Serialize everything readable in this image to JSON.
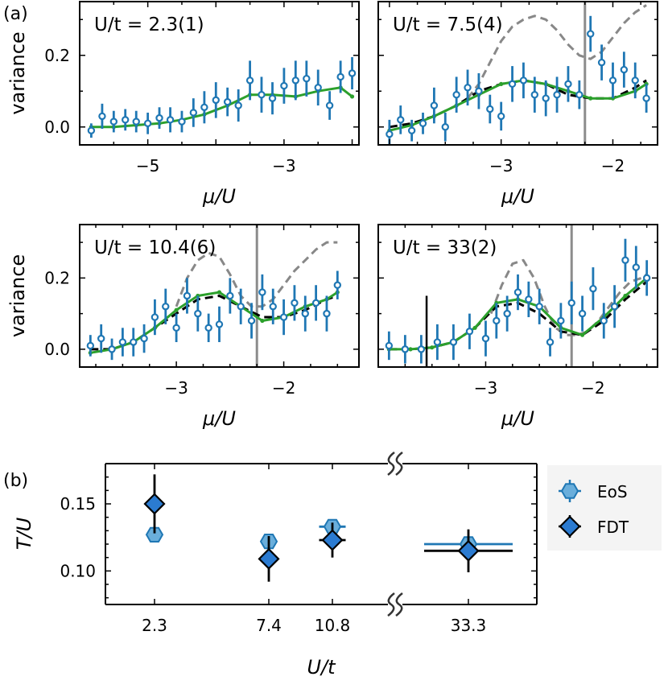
{
  "panel_labels": [
    "(a)",
    "(b)"
  ],
  "chart_data": [
    {
      "type": "line",
      "annotation": "U/t = 2.3(1)",
      "xlabel": "μ/U",
      "ylabel": "variance",
      "xlim": [
        -6.0,
        -1.9
      ],
      "ylim": [
        -0.05,
        0.35
      ],
      "xticks": [
        -5,
        -3
      ],
      "xtick_labels": [
        "−5",
        "−3"
      ],
      "yticks": [
        0.0,
        0.2
      ],
      "ytick_labels": [
        "0.0",
        "0.2"
      ],
      "vline": null,
      "series": [
        {
          "kind": "errorbar",
          "color": "#1f77b4",
          "x": [
            -5.83,
            -5.67,
            -5.5,
            -5.33,
            -5.17,
            -5.0,
            -4.83,
            -4.67,
            -4.5,
            -4.33,
            -4.17,
            -4.0,
            -3.83,
            -3.67,
            -3.5,
            -3.33,
            -3.17,
            -3.0,
            -2.83,
            -2.67,
            -2.5,
            -2.33,
            -2.17,
            -2.0
          ],
          "y": [
            -0.01,
            0.03,
            0.015,
            0.02,
            0.015,
            0.01,
            0.025,
            0.02,
            0.015,
            0.04,
            0.055,
            0.075,
            0.07,
            0.06,
            0.13,
            0.09,
            0.08,
            0.115,
            0.13,
            0.135,
            0.11,
            0.06,
            0.14,
            0.15
          ],
          "err": [
            0.02,
            0.035,
            0.03,
            0.03,
            0.03,
            0.03,
            0.03,
            0.035,
            0.03,
            0.04,
            0.045,
            0.05,
            0.04,
            0.045,
            0.055,
            0.05,
            0.045,
            0.05,
            0.055,
            0.05,
            0.05,
            0.04,
            0.045,
            0.045
          ]
        },
        {
          "kind": "line",
          "color": "#2ca02c",
          "x": [
            -5.83,
            -5.5,
            -5.17,
            -4.83,
            -4.5,
            -4.17,
            -3.83,
            -3.5,
            -3.17,
            -2.83,
            -2.5,
            -2.17,
            -2.0
          ],
          "y": [
            0.0,
            0.0,
            0.005,
            0.01,
            0.02,
            0.035,
            0.06,
            0.09,
            0.09,
            0.085,
            0.1,
            0.11,
            0.085
          ]
        }
      ]
    },
    {
      "type": "line",
      "annotation": "U/t = 7.5(4)",
      "xlabel": "μ/U",
      "ylabel": "",
      "xlim": [
        -4.1,
        -1.6
      ],
      "ylim": [
        -0.05,
        0.35
      ],
      "xticks": [
        -3,
        -2
      ],
      "xtick_labels": [
        "−3",
        "−2"
      ],
      "yticks": [
        0.0,
        0.2
      ],
      "ytick_labels": [
        "",
        ""
      ],
      "vline": -2.25,
      "series": [
        {
          "kind": "errorbar",
          "color": "#1f77b4",
          "x": [
            -4.0,
            -3.9,
            -3.8,
            -3.7,
            -3.6,
            -3.5,
            -3.4,
            -3.3,
            -3.2,
            -3.1,
            -3.0,
            -2.9,
            -2.8,
            -2.7,
            -2.6,
            -2.5,
            -2.4,
            -2.3,
            -2.2,
            -2.1,
            -2.0,
            -1.9,
            -1.8,
            -1.7
          ],
          "y": [
            -0.02,
            0.02,
            -0.01,
            0.01,
            0.06,
            0.0,
            0.09,
            0.11,
            0.1,
            0.05,
            0.03,
            0.12,
            0.13,
            0.09,
            0.08,
            0.09,
            0.12,
            0.09,
            0.26,
            0.18,
            0.13,
            0.16,
            0.13,
            0.08
          ],
          "err": [
            0.04,
            0.04,
            0.03,
            0.03,
            0.05,
            0.04,
            0.05,
            0.05,
            0.05,
            0.04,
            0.04,
            0.05,
            0.05,
            0.05,
            0.05,
            0.05,
            0.05,
            0.04,
            0.05,
            0.05,
            0.05,
            0.05,
            0.05,
            0.04
          ]
        },
        {
          "kind": "line",
          "color": "#2ca02c",
          "x": [
            -4.0,
            -3.8,
            -3.6,
            -3.4,
            -3.2,
            -3.0,
            -2.8,
            -2.6,
            -2.4,
            -2.2,
            -2.0,
            -1.8,
            -1.7
          ],
          "y": [
            -0.01,
            0.005,
            0.03,
            0.06,
            0.09,
            0.12,
            0.13,
            0.12,
            0.1,
            0.08,
            0.08,
            0.1,
            0.12
          ]
        },
        {
          "kind": "dashed",
          "color": "#000000",
          "x": [
            -4.0,
            -3.8,
            -3.6,
            -3.4,
            -3.2,
            -3.0,
            -2.8,
            -2.6,
            -2.4,
            -2.2,
            -2.0,
            -1.8,
            -1.7
          ],
          "y": [
            0.0,
            0.01,
            0.03,
            0.06,
            0.1,
            0.12,
            0.13,
            0.12,
            0.09,
            0.08,
            0.08,
            0.11,
            0.13
          ]
        },
        {
          "kind": "dashed",
          "color": "#888888",
          "x": [
            -3.3,
            -3.2,
            -3.1,
            -3.0,
            -2.9,
            -2.8,
            -2.7,
            -2.6,
            -2.5,
            -2.4,
            -2.3,
            -2.2,
            -2.1,
            -2.0,
            -1.9,
            -1.8,
            -1.7
          ],
          "y": [
            0.08,
            0.12,
            0.18,
            0.24,
            0.28,
            0.3,
            0.31,
            0.3,
            0.27,
            0.23,
            0.2,
            0.19,
            0.21,
            0.25,
            0.29,
            0.32,
            0.34
          ]
        }
      ]
    },
    {
      "type": "line",
      "annotation": "U/t = 10.4(6)",
      "xlabel": "μ/U",
      "ylabel": "variance",
      "xlim": [
        -3.9,
        -1.3
      ],
      "ylim": [
        -0.05,
        0.35
      ],
      "xticks": [
        -3,
        -2
      ],
      "xtick_labels": [
        "−3",
        "−2"
      ],
      "yticks": [
        0.0,
        0.2
      ],
      "ytick_labels": [
        "0.0",
        "0.2"
      ],
      "vline": -2.25,
      "series": [
        {
          "kind": "errorbar",
          "color": "#1f77b4",
          "x": [
            -3.8,
            -3.7,
            -3.6,
            -3.5,
            -3.4,
            -3.3,
            -3.2,
            -3.1,
            -3.0,
            -2.9,
            -2.8,
            -2.7,
            -2.6,
            -2.5,
            -2.4,
            -2.3,
            -2.2,
            -2.1,
            -2.0,
            -1.9,
            -1.8,
            -1.7,
            -1.6,
            -1.5
          ],
          "y": [
            0.01,
            0.03,
            0.0,
            0.02,
            0.02,
            0.03,
            0.09,
            0.12,
            0.06,
            0.15,
            0.1,
            0.06,
            0.07,
            0.15,
            0.12,
            0.08,
            0.16,
            0.12,
            0.09,
            0.13,
            0.1,
            0.13,
            0.1,
            0.18
          ],
          "err": [
            0.03,
            0.04,
            0.03,
            0.04,
            0.04,
            0.04,
            0.05,
            0.05,
            0.04,
            0.05,
            0.05,
            0.04,
            0.05,
            0.05,
            0.05,
            0.05,
            0.05,
            0.05,
            0.05,
            0.05,
            0.05,
            0.05,
            0.05,
            0.04
          ]
        },
        {
          "kind": "line",
          "color": "#2ca02c",
          "x": [
            -3.8,
            -3.6,
            -3.4,
            -3.2,
            -3.0,
            -2.8,
            -2.6,
            -2.4,
            -2.2,
            -2.0,
            -1.8,
            -1.6,
            -1.5
          ],
          "y": [
            -0.01,
            0.0,
            0.02,
            0.06,
            0.11,
            0.15,
            0.16,
            0.12,
            0.08,
            0.09,
            0.12,
            0.14,
            0.16
          ]
        },
        {
          "kind": "dashed",
          "color": "#000000",
          "x": [
            -3.8,
            -3.6,
            -3.4,
            -3.2,
            -3.0,
            -2.8,
            -2.6,
            -2.4,
            -2.2,
            -2.0,
            -1.8,
            -1.6,
            -1.5
          ],
          "y": [
            0.0,
            0.0,
            0.02,
            0.06,
            0.1,
            0.14,
            0.15,
            0.12,
            0.09,
            0.09,
            0.11,
            0.14,
            0.15
          ]
        },
        {
          "kind": "dashed",
          "color": "#888888",
          "x": [
            -3.0,
            -2.9,
            -2.8,
            -2.7,
            -2.6,
            -2.5,
            -2.4,
            -2.3,
            -2.2,
            -2.1,
            -2.0,
            -1.9,
            -1.8,
            -1.7,
            -1.6,
            -1.5
          ],
          "y": [
            0.12,
            0.2,
            0.25,
            0.27,
            0.26,
            0.21,
            0.15,
            0.12,
            0.12,
            0.14,
            0.18,
            0.22,
            0.25,
            0.28,
            0.3,
            0.3
          ]
        }
      ]
    },
    {
      "type": "line",
      "annotation": "U/t = 33(2)",
      "xlabel": "μ/U",
      "ylabel": "",
      "xlim": [
        -4.0,
        -1.4
      ],
      "ylim": [
        -0.05,
        0.35
      ],
      "xticks": [
        -3,
        -2
      ],
      "xtick_labels": [
        "−3",
        "−2"
      ],
      "yticks": [
        0.0,
        0.2
      ],
      "ytick_labels": [
        "",
        ""
      ],
      "vline": -2.2,
      "series": [
        {
          "kind": "errorbar",
          "color": "#1f77b4",
          "x": [
            -3.9,
            -3.75,
            -3.6,
            -3.45,
            -3.3,
            -3.15,
            -3.0,
            -2.9,
            -2.8,
            -2.7,
            -2.6,
            -2.5,
            -2.4,
            -2.3,
            -2.2,
            -2.1,
            -2.0,
            -1.9,
            -1.8,
            -1.7,
            -1.6,
            -1.5
          ],
          "y": [
            0.01,
            0.0,
            0.0,
            0.02,
            0.02,
            0.05,
            0.03,
            0.08,
            0.1,
            0.16,
            0.14,
            0.12,
            0.02,
            0.08,
            0.13,
            0.1,
            0.17,
            0.08,
            0.12,
            0.25,
            0.23,
            0.2
          ],
          "err": [
            0.04,
            0.04,
            0.04,
            0.05,
            0.05,
            0.05,
            0.05,
            0.05,
            0.05,
            0.05,
            0.05,
            0.05,
            0.04,
            0.05,
            0.06,
            0.05,
            0.06,
            0.05,
            0.06,
            0.06,
            0.06,
            0.05
          ]
        },
        {
          "kind": "line",
          "color": "#2ca02c",
          "x": [
            -3.9,
            -3.7,
            -3.5,
            -3.3,
            -3.1,
            -2.9,
            -2.7,
            -2.5,
            -2.3,
            -2.1,
            -1.9,
            -1.7,
            -1.5
          ],
          "y": [
            0.0,
            0.0,
            0.005,
            0.02,
            0.06,
            0.13,
            0.14,
            0.12,
            0.06,
            0.04,
            0.09,
            0.15,
            0.2
          ]
        },
        {
          "kind": "dashed",
          "color": "#000000",
          "x": [
            -3.9,
            -3.7,
            -3.5,
            -3.3,
            -3.1,
            -2.9,
            -2.7,
            -2.5,
            -2.3,
            -2.1,
            -1.9,
            -1.7,
            -1.5
          ],
          "y": [
            0.0,
            0.0,
            0.005,
            0.02,
            0.06,
            0.12,
            0.13,
            0.1,
            0.05,
            0.04,
            0.08,
            0.14,
            0.19
          ]
        },
        {
          "kind": "dashed",
          "color": "#888888",
          "x": [
            -2.95,
            -2.85,
            -2.75,
            -2.65,
            -2.55,
            -2.45,
            -2.35,
            -2.25,
            -2.15,
            -2.05,
            -1.95,
            -1.85,
            -1.75,
            -1.65,
            -1.55,
            -1.5
          ],
          "y": [
            0.1,
            0.18,
            0.24,
            0.25,
            0.2,
            0.12,
            0.06,
            0.04,
            0.04,
            0.05,
            0.08,
            0.12,
            0.16,
            0.19,
            0.2,
            0.21
          ]
        },
        {
          "kind": "vbar",
          "color": "#000000",
          "x": -3.55,
          "y": 0.03,
          "err": 0.12
        }
      ]
    },
    {
      "type": "scatter",
      "xlabel": "U/t",
      "ylabel": "T/U",
      "ylim": [
        0.075,
        0.18
      ],
      "xtick_labels": [
        "2.3",
        "7.4",
        "10.8",
        "33.3"
      ],
      "yticks": [
        0.1,
        0.15
      ],
      "ytick_labels": [
        "0.10",
        "0.15"
      ],
      "axis_break": true,
      "legend_position": "right",
      "legend": [
        "EoS",
        "FDT"
      ],
      "series": [
        {
          "name": "EoS",
          "marker": "hexagon",
          "color": "#6aaedb",
          "edge": "#1f77b4",
          "x": [
            "2.3",
            "7.4",
            "10.8",
            "33.3"
          ],
          "y": [
            0.127,
            0.122,
            0.133,
            0.12
          ],
          "yerr": [
            0.002,
            0.002,
            0.004,
            0.002
          ],
          "xerr_span": [
            0,
            0,
            0.3,
            1.0
          ]
        },
        {
          "name": "FDT",
          "marker": "diamond",
          "color": "#2b7bd1",
          "edge": "#000000",
          "x": [
            "2.3",
            "7.4",
            "10.8",
            "33.3"
          ],
          "y": [
            0.15,
            0.109,
            0.123,
            0.115
          ],
          "yerr": [
            0.022,
            0.017,
            0.013,
            0.016
          ],
          "xerr_span": [
            0,
            0,
            0.3,
            1.0
          ]
        }
      ]
    }
  ]
}
